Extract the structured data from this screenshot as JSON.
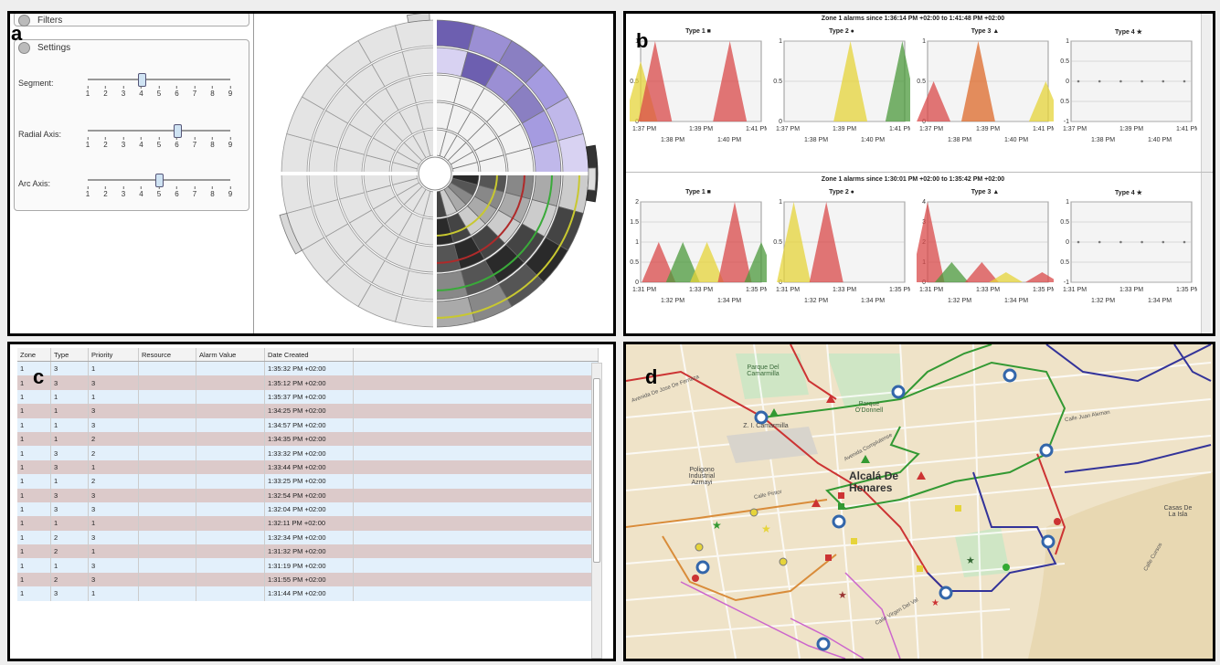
{
  "panel_a": {
    "letter": "a",
    "filters_label": "Filters",
    "settings_label": "Settings",
    "sliders": [
      {
        "label": "Segment:",
        "value": 4
      },
      {
        "label": "Radial Axis:",
        "value": 6
      },
      {
        "label": "Arc Axis:",
        "value": 5
      }
    ],
    "tick_labels": [
      "1",
      "2",
      "3",
      "4",
      "5",
      "6",
      "7",
      "8",
      "9"
    ]
  },
  "panel_b": {
    "letter": "b",
    "charts": [
      {
        "title": "Zone 1 alarms since 1:36:14 PM +02:00 to 1:41:48 PM +02:00",
        "x_top": [
          "1:37 PM",
          "1:39 PM",
          "1:41 PM"
        ],
        "x_bottom": [
          "1:38 PM",
          "1:40 PM"
        ],
        "subcharts": [
          {
            "title": "Type 1 ■",
            "y_ticks": [
              "1",
              "0.5",
              "0"
            ],
            "ymax": 1,
            "ymin": 0,
            "peaks": [
              {
                "x": 0.0,
                "h": 0.75,
                "color": "#e6d43a"
              },
              {
                "x": 0.12,
                "h": 1.0,
                "color": "#d94a4a"
              },
              {
                "x": 0.74,
                "h": 1.0,
                "color": "#d94a4a"
              }
            ]
          },
          {
            "title": "Type 2 ●",
            "y_ticks": [
              "1",
              "0.5",
              "0"
            ],
            "ymax": 1,
            "ymin": 0,
            "peaks": [
              {
                "x": 0.55,
                "h": 1.0,
                "color": "#e6d43a"
              },
              {
                "x": 0.98,
                "h": 1.0,
                "color": "#4c9a3c"
              }
            ]
          },
          {
            "title": "Type 3 ▲",
            "y_ticks": [
              "1",
              "0.5",
              "0"
            ],
            "ymax": 1,
            "ymin": 0,
            "peaks": [
              {
                "x": 0.05,
                "h": 0.5,
                "color": "#d94a4a"
              },
              {
                "x": 0.42,
                "h": 1.0,
                "color": "#dd6a2a"
              },
              {
                "x": 0.98,
                "h": 0.5,
                "color": "#e6d43a"
              }
            ]
          },
          {
            "title": "Type 4 ★",
            "y_ticks": [
              "1",
              "0.5",
              "0",
              "-0.5",
              "-1"
            ],
            "ymax": 1,
            "ymin": -1,
            "flat": true,
            "peaks": []
          }
        ]
      },
      {
        "title": "Zone 1 alarms since 1:30:01 PM +02:00 to 1:35:42 PM +02:00",
        "x_top": [
          "1:31 PM",
          "1:33 PM",
          "1:35 PM"
        ],
        "x_bottom": [
          "1:32 PM",
          "1:34 PM"
        ],
        "subcharts": [
          {
            "title": "Type 1 ■",
            "y_ticks": [
              "2",
              "1.5",
              "1",
              "0.5",
              "0"
            ],
            "ymax": 2,
            "ymin": 0,
            "peaks": [
              {
                "x": 0.15,
                "h": 1.0,
                "color": "#d94a4a"
              },
              {
                "x": 0.35,
                "h": 1.0,
                "color": "#4c9a3c"
              },
              {
                "x": 0.55,
                "h": 1.0,
                "color": "#e6d43a"
              },
              {
                "x": 0.78,
                "h": 2.0,
                "color": "#d94a4a"
              },
              {
                "x": 1.0,
                "h": 1.0,
                "color": "#4c9a3c"
              }
            ]
          },
          {
            "title": "Type 2 ●",
            "y_ticks": [
              "1",
              "0.5",
              "0"
            ],
            "ymax": 1,
            "ymin": 0,
            "peaks": [
              {
                "x": 0.08,
                "h": 1.0,
                "color": "#e6d43a"
              },
              {
                "x": 0.35,
                "h": 1.0,
                "color": "#d94a4a"
              }
            ]
          },
          {
            "title": "Type 3 ▲",
            "y_ticks": [
              "4",
              "3",
              "2",
              "1",
              "0"
            ],
            "ymax": 4,
            "ymin": 0,
            "peaks": [
              {
                "x": 0.0,
                "h": 4.0,
                "color": "#d94a4a"
              },
              {
                "x": 0.2,
                "h": 1.0,
                "color": "#4c9a3c"
              },
              {
                "x": 0.45,
                "h": 1.0,
                "color": "#d94a4a"
              },
              {
                "x": 0.65,
                "h": 0.5,
                "color": "#e6d43a"
              },
              {
                "x": 0.95,
                "h": 0.5,
                "color": "#d94a4a"
              }
            ]
          },
          {
            "title": "Type 4 ★",
            "y_ticks": [
              "1",
              "0.5",
              "0",
              "-0.5",
              "-1"
            ],
            "ymax": 1,
            "ymin": -1,
            "flat": true,
            "peaks": []
          }
        ]
      }
    ]
  },
  "panel_c": {
    "letter": "c",
    "columns": [
      "Zone",
      "Type",
      "Priority",
      "Resource",
      "Alarm Value",
      "Date Created"
    ],
    "rows": [
      [
        "1",
        "3",
        "1",
        "",
        "",
        "1:35:32 PM +02:00"
      ],
      [
        "1",
        "3",
        "3",
        "",
        "",
        "1:35:12 PM +02:00"
      ],
      [
        "1",
        "1",
        "1",
        "",
        "",
        "1:35:37 PM +02:00"
      ],
      [
        "1",
        "1",
        "3",
        "",
        "",
        "1:34:25 PM +02:00"
      ],
      [
        "1",
        "1",
        "3",
        "",
        "",
        "1:34:57 PM +02:00"
      ],
      [
        "1",
        "1",
        "2",
        "",
        "",
        "1:34:35 PM +02:00"
      ],
      [
        "1",
        "3",
        "2",
        "",
        "",
        "1:33:32 PM +02:00"
      ],
      [
        "1",
        "3",
        "1",
        "",
        "",
        "1:33:44 PM +02:00"
      ],
      [
        "1",
        "1",
        "2",
        "",
        "",
        "1:33:25 PM +02:00"
      ],
      [
        "1",
        "3",
        "3",
        "",
        "",
        "1:32:54 PM +02:00"
      ],
      [
        "1",
        "3",
        "3",
        "",
        "",
        "1:32:04 PM +02:00"
      ],
      [
        "1",
        "1",
        "1",
        "",
        "",
        "1:32:11 PM +02:00"
      ],
      [
        "1",
        "2",
        "3",
        "",
        "",
        "1:32:34 PM +02:00"
      ],
      [
        "1",
        "2",
        "1",
        "",
        "",
        "1:31:32 PM +02:00"
      ],
      [
        "1",
        "1",
        "3",
        "",
        "",
        "1:31:19 PM +02:00"
      ],
      [
        "1",
        "2",
        "3",
        "",
        "",
        "1:31:55 PM +02:00"
      ],
      [
        "1",
        "3",
        "1",
        "",
        "",
        "1:31:44 PM +02:00"
      ]
    ]
  },
  "panel_d": {
    "letter": "d",
    "labels": {
      "city": "Alcalá De Henares",
      "zone": "Z. I. Camarmilla",
      "poligono": "Poligono Industrial Azmayi",
      "parque": "Parque Del Camarmilla",
      "parque2": "Parque O'Donnell",
      "casas": "Casas De La Isla",
      "street1": "Avenida De Jose De Fernaza",
      "street2": "Calle Juan Aleman",
      "street3": "Calle Pintor",
      "street4": "Calle Virgen Del Val",
      "street5": "Avenida Complutense",
      "street6": "Calle Cursos"
    }
  }
}
